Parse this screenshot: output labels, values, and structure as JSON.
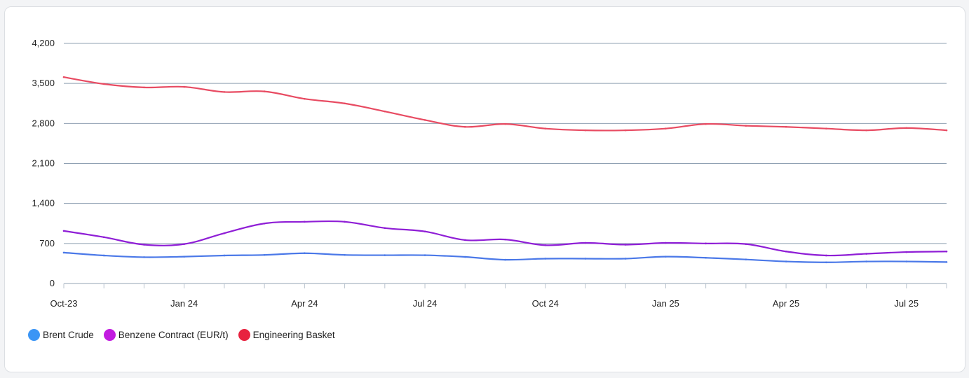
{
  "chart_data": {
    "type": "line",
    "title": "",
    "xlabel": "",
    "ylabel": "",
    "x": [
      "Oct-23",
      "Nov-23",
      "Dec-23",
      "Jan 24",
      "Feb-24",
      "Mar-24",
      "Apr 24",
      "May-24",
      "Jun-24",
      "Jul 24",
      "Aug-24",
      "Sep-24",
      "Oct 24",
      "Nov-24",
      "Dec-24",
      "Jan 25",
      "Feb-25",
      "Mar-25",
      "Apr 25",
      "May-25",
      "Jun-25",
      "Jul 25",
      "Aug-25"
    ],
    "x_tick_labels": [
      "Oct-23",
      "",
      "",
      "Jan 24",
      "",
      "",
      "Apr 24",
      "",
      "",
      "Jul 24",
      "",
      "",
      "Oct 24",
      "",
      "",
      "Jan 25",
      "",
      "",
      "Apr 25",
      "",
      "",
      "Jul 25",
      ""
    ],
    "y_ticks": [
      0,
      700,
      1400,
      2100,
      2800,
      3500,
      4200
    ],
    "y_tick_labels": [
      "0",
      "700",
      "1,400",
      "2,100",
      "2,800",
      "3,500",
      "4,200"
    ],
    "ylim": [
      0,
      4200
    ],
    "grid": true,
    "legend_position": "bottom-left",
    "series": [
      {
        "name": "Brent Crude",
        "color": "#3b95f5",
        "line_color": "#4a78e8",
        "values": [
          540,
          490,
          460,
          470,
          490,
          500,
          530,
          500,
          495,
          495,
          465,
          415,
          435,
          435,
          435,
          470,
          450,
          420,
          385,
          370,
          385,
          385,
          375
        ]
      },
      {
        "name": "Benzene Contract (EUR/t)",
        "color": "#c21be0",
        "line_color": "#8f1ed6",
        "values": [
          920,
          810,
          680,
          690,
          880,
          1050,
          1080,
          1080,
          970,
          910,
          760,
          770,
          670,
          710,
          680,
          710,
          700,
          690,
          560,
          490,
          520,
          550,
          560
        ]
      },
      {
        "name": "Engineering Basket",
        "color": "#e8223f",
        "line_color": "#e84b62",
        "values": [
          3610,
          3490,
          3430,
          3440,
          3350,
          3360,
          3230,
          3150,
          3010,
          2860,
          2740,
          2790,
          2710,
          2680,
          2680,
          2710,
          2790,
          2760,
          2740,
          2710,
          2680,
          2720,
          2680
        ]
      }
    ]
  }
}
